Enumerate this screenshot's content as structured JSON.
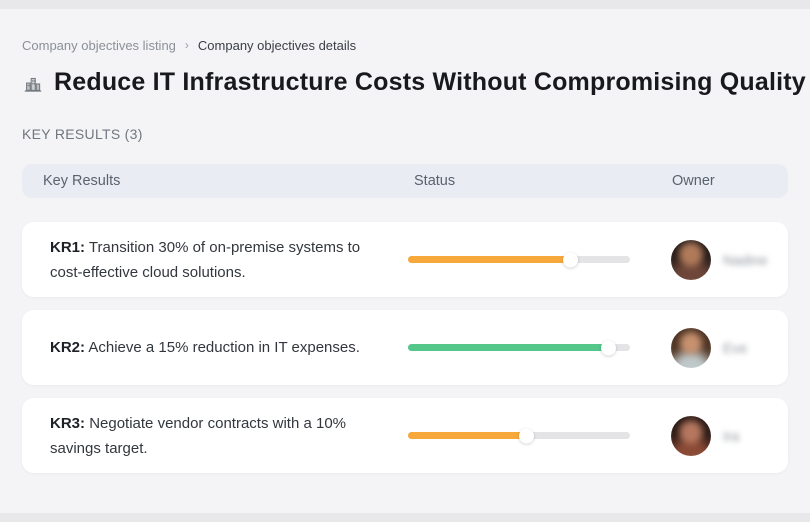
{
  "breadcrumb": {
    "separator": "›",
    "items": [
      {
        "label": "Company objectives listing"
      },
      {
        "label": "Company objectives details"
      }
    ]
  },
  "page": {
    "title": "Reduce IT Infrastructure Costs Without Compromising Quality",
    "title_icon": "buildings-icon",
    "section_label": "KEY RESULTS (3)"
  },
  "table": {
    "headers": {
      "key_results": "Key Results",
      "status": "Status",
      "owner": "Owner"
    }
  },
  "rows": [
    {
      "kr_label": "KR1:",
      "kr_text": "Transition 30% of on-premise systems to cost-effective cloud solutions.",
      "progress": {
        "percent": 73,
        "color": "#F7A83B"
      },
      "owner": {
        "name": "Nadine"
      }
    },
    {
      "kr_label": "KR2:",
      "kr_text": "Achieve a 15% reduction in IT expenses.",
      "progress": {
        "percent": 90,
        "color": "#55C78B"
      },
      "owner": {
        "name": "Eve"
      }
    },
    {
      "kr_label": "KR3:",
      "kr_text": "Negotiate vendor contracts with a 10% savings target.",
      "progress": {
        "percent": 53,
        "color": "#F7A83B"
      },
      "owner": {
        "name": "Ira"
      }
    }
  ],
  "colors": {
    "progress_orange": "#F7A83B",
    "progress_green": "#55C78B",
    "track": "#E4E4E6",
    "header_bg": "#E9ECF3",
    "page_bg": "#F4F4F6"
  }
}
